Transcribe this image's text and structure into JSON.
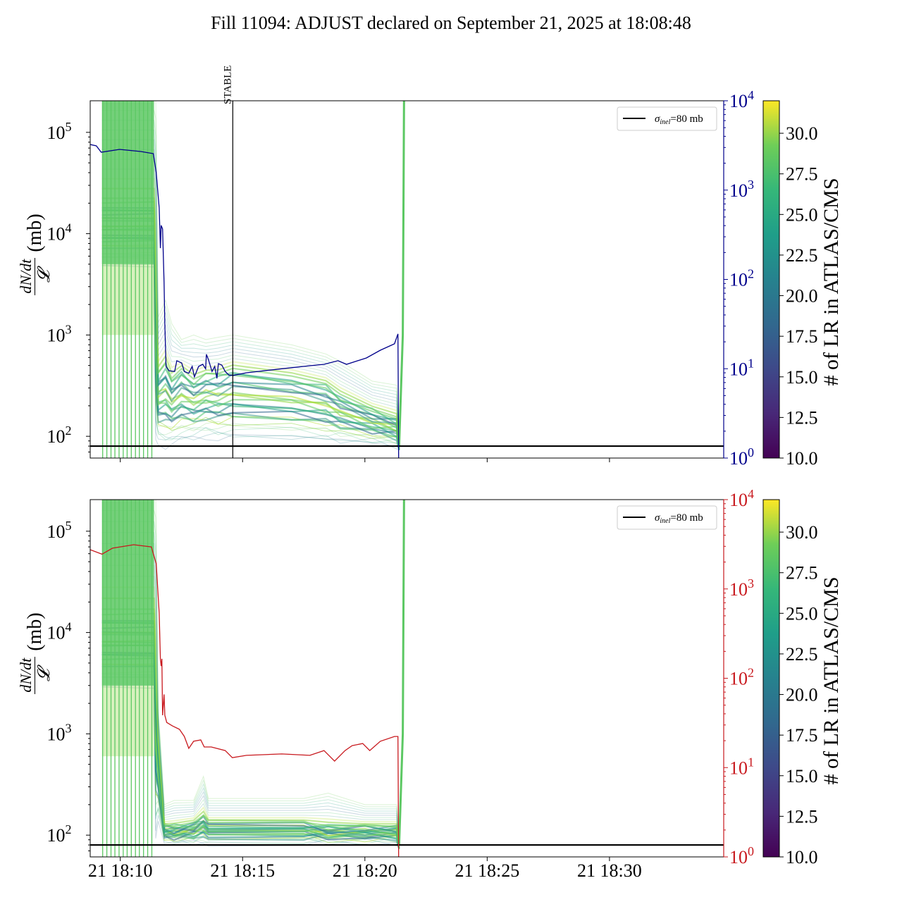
{
  "title": "Fill 11094: ADJUST declared on September 21, 2025 at 18:08:48",
  "chart_data": {
    "type": "line",
    "title": "Fill 11094: ADJUST declared on September 21, 2025 at 18:08:48",
    "x_unit": "minutes after 18:00 on Sep 21",
    "xlim": [
      8.77,
      34.67
    ],
    "x_ticks": [
      10,
      15,
      20,
      25,
      30
    ],
    "x_tick_labels": [
      "21 18:10",
      "21 18:15",
      "21 18:20",
      "21 18:25",
      "21 18:30"
    ],
    "ylabel": {
      "num": "dN/dt",
      "den": "𝓛",
      "unit": "(mb)"
    },
    "ylim": [
      61,
      205000
    ],
    "y_scale": "log",
    "y_ticks": [
      100000,
      10000,
      1000,
      100
    ],
    "y_tick_labels": [
      {
        "b": "10",
        "e": "5"
      },
      {
        "b": "10",
        "e": "4"
      },
      {
        "b": "10",
        "e": "3"
      },
      {
        "b": "10",
        "e": "2"
      }
    ],
    "right_ylim": [
      1,
      10000
    ],
    "right_y_ticks": [
      10000,
      1000,
      100,
      10,
      1
    ],
    "right_y_tick_labels": [
      {
        "b": "10",
        "e": "4"
      },
      {
        "b": "10",
        "e": "3"
      },
      {
        "b": "10",
        "e": "2"
      },
      {
        "b": "10",
        "e": "1"
      },
      {
        "b": "10",
        "e": "0"
      }
    ],
    "legend": {
      "label_sym": "σ",
      "label_sub": "inel",
      "label_rest": "=80 mb",
      "placement": "upper-right"
    },
    "sigma_inel": 80,
    "colorbar": {
      "label": "# of LR in ATLAS/CMS",
      "range": [
        10,
        32
      ],
      "ticks": [
        "10.0",
        "12.5",
        "15.0",
        "17.5",
        "20.0",
        "22.5",
        "25.0",
        "27.5",
        "30.0"
      ]
    },
    "spike_times": [
      9.28,
      9.45,
      9.62,
      9.78,
      9.95,
      10.12,
      10.28,
      10.45,
      10.62,
      10.78,
      10.95,
      11.12,
      11.29
    ],
    "recovery_time": 21.6,
    "panels": [
      {
        "name": "top",
        "right_color": "#00008b",
        "annotation": {
          "label": "STABLE",
          "x": 14.6
        },
        "band": [
          [
            9.25,
            5000,
            20000,
            205000
          ],
          [
            11.38,
            5000,
            20000,
            205000
          ],
          [
            11.45,
            100,
            3000,
            205000
          ],
          [
            11.55,
            90,
            400,
            1500
          ],
          [
            11.85,
            80,
            500,
            2200
          ],
          [
            12.1,
            85,
            350,
            1300
          ],
          [
            12.5,
            90,
            450,
            900
          ],
          [
            13.0,
            95,
            350,
            1000
          ],
          [
            13.5,
            100,
            400,
            900
          ],
          [
            14.0,
            95,
            400,
            950
          ],
          [
            14.6,
            95,
            450,
            1000
          ],
          [
            17.0,
            95,
            380,
            800
          ],
          [
            18.4,
            90,
            320,
            650
          ],
          [
            19.0,
            88,
            250,
            550
          ],
          [
            20.3,
            85,
            180,
            350
          ],
          [
            21.3,
            80,
            150,
            320
          ],
          [
            21.4,
            80,
            80,
            80
          ]
        ],
        "right_series": [
          [
            8.76,
            3245
          ],
          [
            9.02,
            3126
          ],
          [
            9.22,
            2655
          ],
          [
            9.97,
            2856
          ],
          [
            10.84,
            2705
          ],
          [
            11.35,
            2560
          ],
          [
            11.47,
            1567
          ],
          [
            11.59,
            632
          ],
          [
            11.64,
            224
          ],
          [
            11.67,
            402
          ],
          [
            11.73,
            367
          ],
          [
            11.79,
            94
          ],
          [
            11.82,
            31.5
          ],
          [
            11.87,
            10.6
          ],
          [
            11.99,
            9.5
          ],
          [
            12.22,
            9.3
          ],
          [
            12.31,
            12.3
          ],
          [
            12.51,
            11.6
          ],
          [
            12.62,
            9.3
          ],
          [
            12.8,
            8.9
          ],
          [
            12.94,
            10.6
          ],
          [
            13.03,
            8.1
          ],
          [
            13.2,
            10.6
          ],
          [
            13.37,
            11.2
          ],
          [
            13.49,
            10.0
          ],
          [
            13.52,
            14.5
          ],
          [
            13.6,
            12.7
          ],
          [
            13.75,
            9.3
          ],
          [
            13.86,
            10.6
          ],
          [
            13.95,
            7.8
          ],
          [
            14.01,
            11.4
          ],
          [
            14.15,
            11.0
          ],
          [
            14.29,
            9.3
          ],
          [
            14.44,
            8.5
          ],
          [
            14.61,
            8.4
          ],
          [
            15.16,
            9.0
          ],
          [
            16.6,
            10.0
          ],
          [
            17.75,
            10.8
          ],
          [
            18.33,
            11.2
          ],
          [
            18.9,
            12.3
          ],
          [
            19.25,
            11.2
          ],
          [
            20.06,
            13.2
          ],
          [
            20.63,
            16.1
          ],
          [
            21.21,
            19.0
          ],
          [
            21.35,
            24.5
          ],
          [
            21.38,
            1
          ]
        ]
      },
      {
        "name": "bottom",
        "right_color": "#c8191e",
        "band": [
          [
            9.25,
            3000,
            15000,
            205000
          ],
          [
            11.38,
            3000,
            15000,
            205000
          ],
          [
            11.45,
            100,
            3000,
            205000
          ],
          [
            11.55,
            150,
            800,
            1800
          ],
          [
            11.8,
            90,
            120,
            200
          ],
          [
            12.2,
            85,
            120,
            220
          ],
          [
            13.0,
            85,
            130,
            220
          ],
          [
            13.4,
            88,
            150,
            380
          ],
          [
            13.6,
            85,
            130,
            230
          ],
          [
            17.5,
            85,
            130,
            230
          ],
          [
            18.5,
            85,
            120,
            260
          ],
          [
            20.0,
            85,
            120,
            200
          ],
          [
            21.3,
            85,
            120,
            200
          ],
          [
            21.4,
            80,
            80,
            80
          ]
        ],
        "right_series": [
          [
            8.76,
            2755
          ],
          [
            9.25,
            2453
          ],
          [
            9.68,
            2858
          ],
          [
            10.55,
            3126
          ],
          [
            11.27,
            2958
          ],
          [
            11.47,
            1915
          ],
          [
            11.59,
            537
          ],
          [
            11.64,
            165
          ],
          [
            11.67,
            137
          ],
          [
            11.7,
            165
          ],
          [
            11.73,
            38.5
          ],
          [
            11.79,
            66
          ],
          [
            11.82,
            38.5
          ],
          [
            11.9,
            32
          ],
          [
            12.13,
            29.3
          ],
          [
            12.42,
            26.8
          ],
          [
            12.62,
            22.3
          ],
          [
            12.8,
            16.4
          ],
          [
            13.0,
            19.7
          ],
          [
            13.29,
            20.4
          ],
          [
            13.43,
            17.0
          ],
          [
            13.72,
            17.0
          ],
          [
            14.29,
            15.5
          ],
          [
            14.58,
            12.9
          ],
          [
            15.16,
            13.7
          ],
          [
            16.6,
            14.2
          ],
          [
            17.75,
            13.7
          ],
          [
            18.33,
            15.5
          ],
          [
            18.76,
            11.8
          ],
          [
            19.19,
            15.5
          ],
          [
            19.48,
            17.6
          ],
          [
            19.91,
            18.6
          ],
          [
            20.2,
            15.5
          ],
          [
            20.63,
            19.7
          ],
          [
            21.21,
            22.3
          ],
          [
            21.35,
            22.3
          ],
          [
            21.38,
            1
          ]
        ]
      }
    ]
  }
}
